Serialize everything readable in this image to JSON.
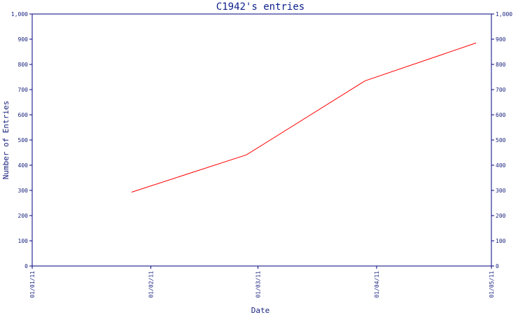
{
  "chart_data": {
    "type": "line",
    "title": "C1942's entries",
    "xlabel": "Date",
    "ylabel": "Number of Entries",
    "x_tick_labels": [
      "01/01/11",
      "01/02/11",
      "01/03/11",
      "01/04/11",
      "01/05/11"
    ],
    "x_ticks": [
      "2011-01-01",
      "2011-02-01",
      "2011-03-01",
      "2011-04-01",
      "2011-05-01"
    ],
    "y_tick_labels": [
      "0",
      "100",
      "200",
      "300",
      "400",
      "500",
      "600",
      "700",
      "800",
      "900",
      "1,000"
    ],
    "ylim": [
      0,
      1000
    ],
    "xlim": [
      "2011-01-01",
      "2011-05-01"
    ],
    "grid": false,
    "legend": "none",
    "series": [
      {
        "color": "#ff0000",
        "x": [
          "2011-01-27",
          "2011-02-26",
          "2011-03-29",
          "2011-04-27"
        ],
        "y": [
          293,
          441,
          735,
          885
        ]
      }
    ],
    "colors": {
      "axis": "#000080",
      "text": "#1a237e",
      "title": "#0b1f8a",
      "line": "#ff0000"
    }
  }
}
